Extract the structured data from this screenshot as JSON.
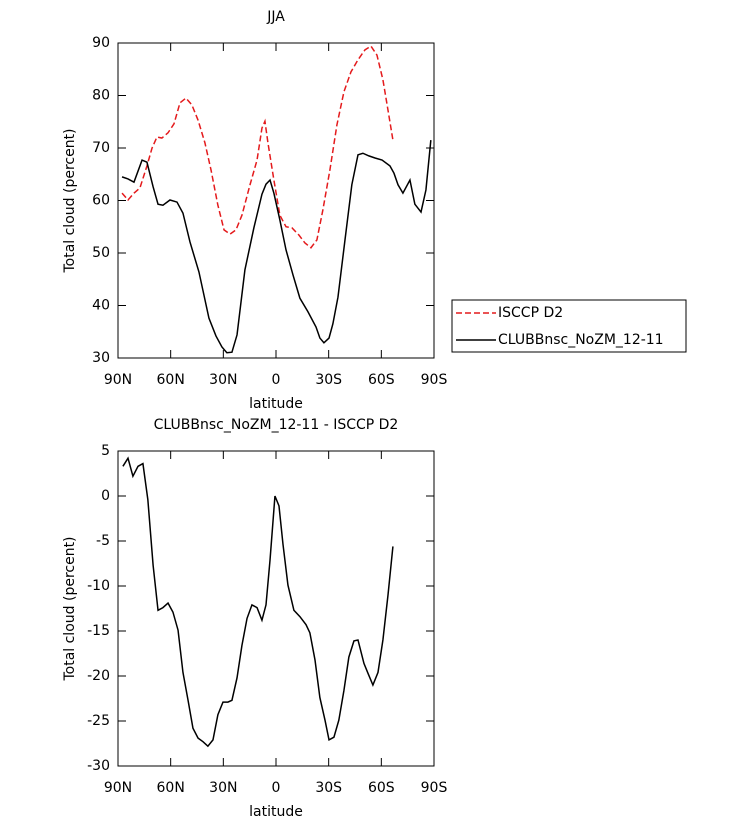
{
  "chart_data": [
    {
      "type": "line",
      "title": "JJA",
      "xlabel": "latitude",
      "ylabel": "Total cloud (percent)",
      "xlim": [
        90,
        -90
      ],
      "xticks": [
        {
          "value": 90,
          "label": "90N"
        },
        {
          "value": 60,
          "label": "60N"
        },
        {
          "value": 30,
          "label": "30N"
        },
        0,
        {
          "value": -30,
          "label": "30S"
        },
        {
          "value": -60,
          "label": "60S"
        },
        {
          "value": -90,
          "label": "90S"
        }
      ],
      "ylim": [
        30,
        90
      ],
      "yticks": [
        30,
        40,
        50,
        60,
        70,
        80,
        90
      ],
      "legend": "outside right",
      "series": [
        {
          "name": "ISCCP D2",
          "color": "#e41a1c",
          "dashed": true,
          "x": [
            87.7,
            84.3,
            80.9,
            77.5,
            73.5,
            70.6,
            67.8,
            65,
            61.5,
            58.1,
            54.7,
            51.3,
            47.9,
            44.4,
            40.5,
            37,
            33.1,
            29.6,
            26.2,
            22.8,
            19.4,
            14.8,
            10.8,
            8,
            6.3,
            4.6,
            1.2,
            -2.2,
            -5.7,
            -9.1,
            -13.1,
            -16.5,
            -19.9,
            -23.3,
            -26.7,
            -30.7,
            -34.7,
            -38.7,
            -42.7,
            -46.7,
            -50.7,
            -54.1,
            -57.5,
            -60.9,
            -63.8,
            -66.6
          ],
          "values": [
            61.4,
            60.1,
            61.4,
            62.4,
            66.6,
            70,
            72.1,
            71.9,
            72.9,
            74.6,
            78.6,
            79.5,
            78.2,
            75.3,
            71,
            65.8,
            59.1,
            54.4,
            53.6,
            54.4,
            57.2,
            63,
            67.7,
            73.8,
            75.1,
            71,
            63.9,
            57.2,
            55,
            54.8,
            53.4,
            51.9,
            51,
            52.5,
            58.2,
            65.8,
            74.4,
            80.7,
            84.5,
            86.8,
            88.7,
            89.4,
            87.7,
            83,
            77.2,
            71.5
          ]
        },
        {
          "name": "CLUBBnsc_NoZM_12-11",
          "color": "#000000",
          "dashed": false,
          "x": [
            87.7,
            84.3,
            80.9,
            76.3,
            73.5,
            70,
            67.2,
            64.4,
            60.4,
            56.4,
            53,
            49,
            43.9,
            38.2,
            34.2,
            30.8,
            28,
            25.1,
            22.2,
            17.7,
            12.6,
            8,
            5.7,
            3.4,
            1.2,
            -2.2,
            -5.7,
            -9.7,
            -13.6,
            -18.2,
            -22.8,
            -25,
            -27.3,
            -30.2,
            -32.4,
            -35.3,
            -39.3,
            -43.2,
            -46.7,
            -49.5,
            -52.9,
            -56.4,
            -60.4,
            -64.9,
            -67.2,
            -69.5,
            -72.3,
            -76.3,
            -79.1,
            -82.6,
            -85.4,
            -88.2
          ],
          "values": [
            64.5,
            64.1,
            63.5,
            67.7,
            67.3,
            62.6,
            59.3,
            59.1,
            60.1,
            59.7,
            57.6,
            52.1,
            46.4,
            37.6,
            34.2,
            32.1,
            31,
            31.1,
            34.4,
            46.8,
            54.8,
            61.2,
            63.1,
            63.9,
            61.4,
            56.3,
            50.6,
            45.8,
            41.4,
            38.8,
            35.9,
            33.8,
            32.9,
            33.8,
            36.5,
            41.6,
            52.5,
            63,
            68.7,
            69,
            68.5,
            68.1,
            67.7,
            66.6,
            65.2,
            63,
            61.4,
            63.9,
            59.3,
            57.8,
            62,
            71.5
          ]
        }
      ]
    },
    {
      "type": "line",
      "title": "CLUBBnsc_NoZM_12-11 - ISCCP D2",
      "xlabel": "latitude",
      "ylabel": "Total cloud (percent)",
      "xlim": [
        90,
        -90
      ],
      "xticks": [
        {
          "value": 90,
          "label": "90N"
        },
        {
          "value": 60,
          "label": "60N"
        },
        {
          "value": 30,
          "label": "30N"
        },
        0,
        {
          "value": -30,
          "label": "30S"
        },
        {
          "value": -60,
          "label": "60S"
        },
        {
          "value": -90,
          "label": "90S"
        }
      ],
      "ylim": [
        -30,
        5
      ],
      "yticks": [
        -30,
        -25,
        -20,
        -15,
        -10,
        -5,
        0,
        5
      ],
      "series": [
        {
          "color": "#000000",
          "dashed": false,
          "x": [
            87.2,
            84.3,
            81.5,
            78.6,
            75.8,
            73,
            70,
            67.2,
            64.4,
            61.5,
            58.7,
            55.8,
            53,
            50.1,
            47.3,
            44.4,
            41.6,
            38.8,
            35.9,
            33.1,
            30.2,
            27.4,
            25.1,
            22.2,
            19.4,
            16.5,
            13.7,
            10.8,
            8,
            5.7,
            3.4,
            0.6,
            -1.7,
            -4,
            -6.8,
            -10.2,
            -13.6,
            -17.1,
            -19.3,
            -22.2,
            -25,
            -27.9,
            -30.2,
            -33,
            -35.8,
            -38.7,
            -41.5,
            -44.4,
            -46.7,
            -50.1,
            -52.4,
            -55.2,
            -58.1,
            -60.9,
            -63.8,
            -66.6
          ],
          "values": [
            3.3,
            4.2,
            2.2,
            3.3,
            3.6,
            -0.4,
            -7.7,
            -12.7,
            -12.4,
            -11.9,
            -12.9,
            -14.9,
            -19.6,
            -22.7,
            -25.8,
            -26.9,
            -27.3,
            -27.8,
            -27.1,
            -24.3,
            -22.9,
            -22.9,
            -22.7,
            -20.2,
            -16.6,
            -13.6,
            -12.1,
            -12.4,
            -13.8,
            -12.1,
            -7.1,
            0,
            -1.1,
            -5.4,
            -9.9,
            -12.7,
            -13.4,
            -14.3,
            -15.2,
            -18.2,
            -22.4,
            -24.9,
            -27.1,
            -26.8,
            -24.9,
            -21.6,
            -17.9,
            -16.1,
            -16,
            -18.6,
            -19.7,
            -21,
            -19.6,
            -16,
            -11,
            -5.6
          ]
        }
      ]
    }
  ]
}
